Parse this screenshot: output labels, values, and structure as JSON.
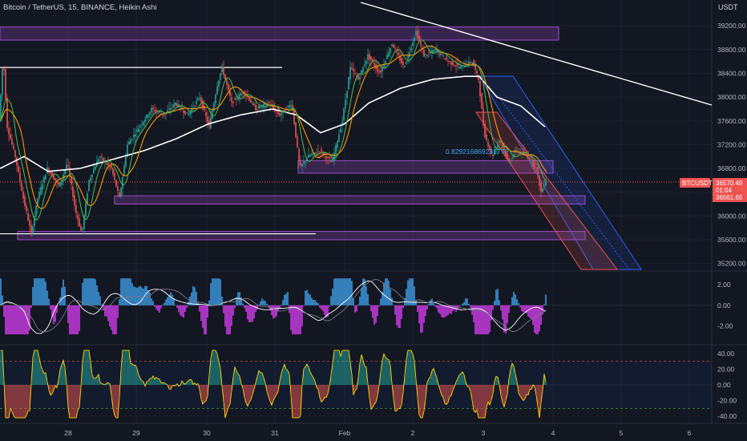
{
  "header": {
    "symbol_title": "Bitcoin / TetherUS, 15, BINANCE, Heikin Ashi",
    "currency_label": "USDT"
  },
  "price_panel": {
    "y_ticks": [
      "39200.00",
      "38800.00",
      "38400.00",
      "38000.00",
      "37600.00",
      "37200.00",
      "36800.00",
      "36400.00",
      "36000.00",
      "35600.00",
      "35200.00"
    ],
    "symbol_badge": "BTCUSDT",
    "current_price": "36570.49",
    "countdown": "01:04",
    "ma_price": "36561.65",
    "fib_label": "0.8292168692317​76"
  },
  "x_axis": {
    "ticks": [
      "28",
      "29",
      "30",
      "31",
      "Feb",
      "2",
      "3",
      "4",
      "5",
      "6"
    ]
  },
  "macd_panel": {
    "y_ticks": [
      "2.00",
      "0.00",
      "-2.00"
    ]
  },
  "osc_panel": {
    "y_ticks": [
      "40.00",
      "20.00",
      "0.00",
      "-20.00",
      "-40.00"
    ]
  },
  "colors": {
    "background": "#131722",
    "up": "#26a69a",
    "down": "#ef5350",
    "zone_fill": "#7b3fa0",
    "zone_stroke": "#9c4dcc",
    "channel_blue": "#2962ff",
    "channel_red": "#ef5350",
    "ma_white": "#ffffff",
    "ema_orange": "#ff9800",
    "ema_green": "#4caf50",
    "macd_blue": "#42a5f5",
    "macd_pink": "#e040fb",
    "osc_yellow": "#ffd600"
  },
  "chart_data": {
    "type": "candlestick",
    "chart_style": "Heikin Ashi",
    "timeframe": "15",
    "exchange": "BINANCE",
    "price_range": [
      35100,
      39500
    ],
    "current_price": 36570.49,
    "ma_value": 36561.65,
    "price_path": [
      [
        0,
        37600
      ],
      [
        5,
        38700
      ],
      [
        10,
        37500
      ],
      [
        20,
        37000
      ],
      [
        30,
        36300
      ],
      [
        40,
        35700
      ],
      [
        48,
        36300
      ],
      [
        60,
        36800
      ],
      [
        75,
        36500
      ],
      [
        85,
        36900
      ],
      [
        95,
        36100
      ],
      [
        103,
        35700
      ],
      [
        112,
        36600
      ],
      [
        125,
        37000
      ],
      [
        140,
        36800
      ],
      [
        150,
        36300
      ],
      [
        160,
        37200
      ],
      [
        175,
        37500
      ],
      [
        190,
        37800
      ],
      [
        205,
        37700
      ],
      [
        220,
        37900
      ],
      [
        235,
        37700
      ],
      [
        250,
        38000
      ],
      [
        262,
        37500
      ],
      [
        272,
        38200
      ],
      [
        278,
        38500
      ],
      [
        290,
        37900
      ],
      [
        305,
        38100
      ],
      [
        320,
        37800
      ],
      [
        335,
        37900
      ],
      [
        350,
        37700
      ],
      [
        365,
        37900
      ],
      [
        375,
        36800
      ],
      [
        385,
        37000
      ],
      [
        400,
        37100
      ],
      [
        415,
        36900
      ],
      [
        428,
        37600
      ],
      [
        438,
        38500
      ],
      [
        448,
        38300
      ],
      [
        460,
        38700
      ],
      [
        475,
        38400
      ],
      [
        490,
        38900
      ],
      [
        505,
        38500
      ],
      [
        515,
        38900
      ],
      [
        520,
        39100
      ],
      [
        530,
        38700
      ],
      [
        545,
        38800
      ],
      [
        560,
        38600
      ],
      [
        575,
        38500
      ],
      [
        590,
        38600
      ],
      [
        598,
        38300
      ],
      [
        605,
        37400
      ],
      [
        615,
        37000
      ],
      [
        625,
        37300
      ],
      [
        635,
        36900
      ],
      [
        645,
        37100
      ],
      [
        660,
        37000
      ],
      [
        670,
        36800
      ],
      [
        676,
        36400
      ],
      [
        682,
        36600
      ]
    ],
    "ma_white_path": [
      [
        0,
        36800
      ],
      [
        30,
        37000
      ],
      [
        60,
        36750
      ],
      [
        100,
        36800
      ],
      [
        140,
        36950
      ],
      [
        180,
        37100
      ],
      [
        220,
        37300
      ],
      [
        260,
        37550
      ],
      [
        300,
        37700
      ],
      [
        340,
        37800
      ],
      [
        370,
        37700
      ],
      [
        400,
        37400
      ],
      [
        430,
        37550
      ],
      [
        460,
        37900
      ],
      [
        500,
        38150
      ],
      [
        540,
        38300
      ],
      [
        580,
        38350
      ],
      [
        598,
        38350
      ],
      [
        620,
        38000
      ],
      [
        650,
        37850
      ],
      [
        680,
        37500
      ]
    ],
    "trendline": {
      "from": [
        "Jan 31",
        39300
      ],
      "to": [
        "Feb 4",
        38000
      ]
    },
    "horizontal_lines": [
      38500,
      35700
    ],
    "zones": [
      {
        "low": 38960,
        "high": 39180
      },
      {
        "low": 36720,
        "high": 36930
      },
      {
        "low": 36200,
        "high": 36340
      },
      {
        "low": 35600,
        "high": 35740
      }
    ],
    "descending_channel": {
      "start_price_top": 37900,
      "start_price_bottom": 37300,
      "end_price_top": 35150,
      "end_price_bottom": 35150
    },
    "x_labels": [
      "28",
      "29",
      "30",
      "31",
      "Feb",
      "2",
      "3",
      "4",
      "5",
      "6"
    ],
    "indicators": {
      "macd": {
        "range": [
          -3.5,
          3
        ],
        "ticks": [
          2,
          0,
          -2
        ]
      },
      "oscillator": {
        "range": [
          -47,
          47
        ],
        "ticks": [
          40,
          20,
          0,
          -20,
          -40
        ],
        "overbought": 30,
        "oversold": -30
      }
    }
  }
}
